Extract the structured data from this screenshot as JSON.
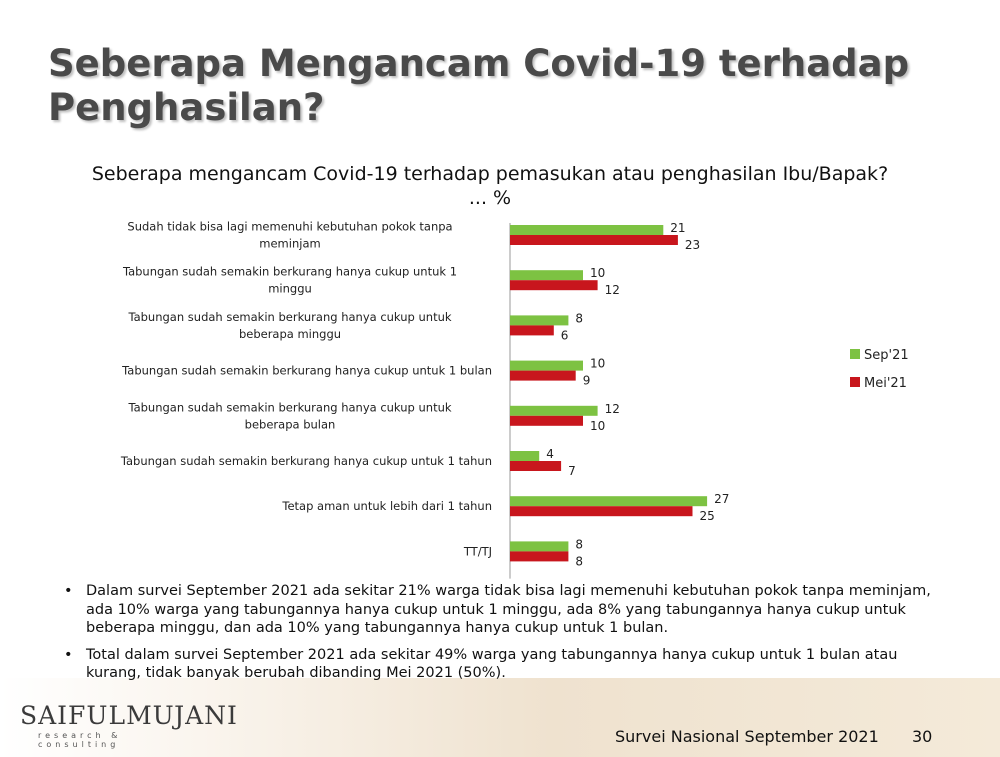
{
  "slide": {
    "title": "Seberapa Mengancam Covid-19 terhadap Penghasilan?",
    "question_line1": "Seberapa mengancam Covid-19 terhadap pemasukan atau penghasilan Ibu/Bapak?",
    "question_line2": "... %"
  },
  "chart_data": {
    "type": "bar",
    "orientation": "horizontal",
    "categories": [
      "Sudah tidak bisa lagi memenuhi kebutuhan pokok tanpa meminjam",
      "Tabungan sudah semakin berkurang hanya cukup untuk 1 minggu",
      "Tabungan sudah semakin berkurang hanya cukup untuk beberapa minggu",
      "Tabungan sudah semakin berkurang hanya cukup untuk 1 bulan",
      "Tabungan sudah semakin berkurang hanya cukup untuk beberapa bulan",
      "Tabungan sudah semakin berkurang hanya cukup untuk 1 tahun",
      "Tetap aman untuk lebih dari 1 tahun",
      "TT/TJ"
    ],
    "series": [
      {
        "name": "Sep'21",
        "color": "#7dc242",
        "values": [
          21,
          10,
          8,
          10,
          12,
          4,
          27,
          8
        ]
      },
      {
        "name": "Mei'21",
        "color": "#c8161d",
        "values": [
          23,
          12,
          6,
          9,
          10,
          7,
          25,
          8
        ]
      }
    ],
    "xlim": [
      0,
      30
    ],
    "grid": false,
    "legend_position": "right"
  },
  "notes": [
    "Dalam survei September 2021 ada sekitar 21% warga tidak bisa lagi memenuhi kebutuhan pokok tanpa meminjam, ada 10% warga yang tabungannya hanya cukup untuk 1 minggu, ada 8% yang tabungannya hanya cukup untuk beberapa minggu, dan ada 10% yang tabungannya hanya cukup untuk 1 bulan.",
    "Total dalam survei September 2021 ada sekitar 49% warga yang tabungannya hanya cukup untuk 1 bulan atau kurang, tidak banyak berubah dibanding Mei 2021 (50%)."
  ],
  "footer": {
    "logo": "SAIFULMUJANI",
    "logo_sub": "research & consulting",
    "survey": "Survei Nasional September 2021",
    "page": "30"
  }
}
